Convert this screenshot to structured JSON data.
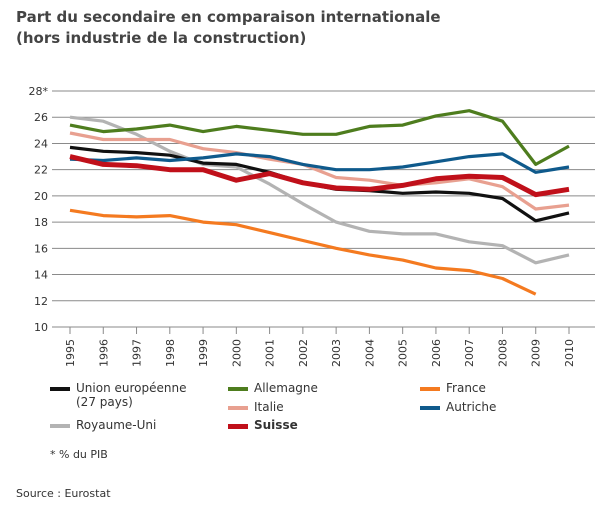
{
  "title_line1": "Part du secondaire en comparaison internationale",
  "title_line2": "(hors industrie de la construction)",
  "footnote": "* % du PIB",
  "source": "Source : Eurostat",
  "chart_data": {
    "type": "line",
    "x": [
      1995,
      1996,
      1997,
      1998,
      1999,
      2000,
      2001,
      2002,
      2003,
      2004,
      2005,
      2006,
      2007,
      2008,
      2009,
      2010
    ],
    "ylim": [
      10,
      28
    ],
    "yticks": [
      "10",
      "12",
      "14",
      "16",
      "18",
      "20",
      "22",
      "24",
      "26",
      "28*"
    ],
    "grid": true,
    "legend_placement": "bottom",
    "series": [
      {
        "name": "Union européenne (27 pays)",
        "name_line1": "Union européenne",
        "name_line2": "(27 pays)",
        "color": "#111111",
        "values": [
          23.7,
          23.4,
          23.3,
          23.1,
          22.5,
          22.4,
          21.8,
          21.0,
          20.5,
          20.4,
          20.2,
          20.3,
          20.2,
          19.8,
          18.1,
          18.7
        ]
      },
      {
        "name": "Allemagne",
        "color": "#4e7d1e",
        "values": [
          25.4,
          24.9,
          25.1,
          25.4,
          24.9,
          25.3,
          25.0,
          24.7,
          24.7,
          25.3,
          25.4,
          26.1,
          26.5,
          25.7,
          22.4,
          23.8
        ]
      },
      {
        "name": "France",
        "color": "#f47a20",
        "values": [
          18.9,
          18.5,
          18.4,
          18.5,
          18.0,
          17.8,
          17.2,
          16.6,
          16.0,
          15.5,
          15.1,
          14.5,
          14.3,
          13.7,
          12.5,
          null
        ]
      },
      {
        "name": "Italie",
        "color": "#e8a090",
        "values": [
          24.8,
          24.3,
          24.3,
          24.3,
          23.6,
          23.3,
          22.8,
          22.4,
          21.4,
          21.2,
          20.8,
          21.0,
          21.3,
          20.7,
          19.0,
          19.3
        ]
      },
      {
        "name": "Autriche",
        "color": "#0f5a8c",
        "values": [
          22.8,
          22.7,
          22.9,
          22.7,
          22.9,
          23.2,
          23.0,
          22.4,
          22.0,
          22.0,
          22.2,
          22.6,
          23.0,
          23.2,
          21.8,
          22.2
        ]
      },
      {
        "name": "Royaume-Uni",
        "color": "#b3b3b3",
        "values": [
          26.0,
          25.7,
          24.7,
          23.4,
          22.4,
          22.2,
          20.9,
          19.4,
          18.0,
          17.3,
          17.1,
          17.1,
          16.5,
          16.2,
          14.9,
          15.5
        ]
      },
      {
        "name": "Suisse",
        "color": "#c0101a",
        "bold": true,
        "values": [
          23.0,
          22.4,
          22.3,
          22.0,
          22.0,
          21.2,
          21.7,
          21.0,
          20.6,
          20.5,
          20.8,
          21.3,
          21.5,
          21.4,
          20.1,
          20.5
        ]
      }
    ]
  }
}
